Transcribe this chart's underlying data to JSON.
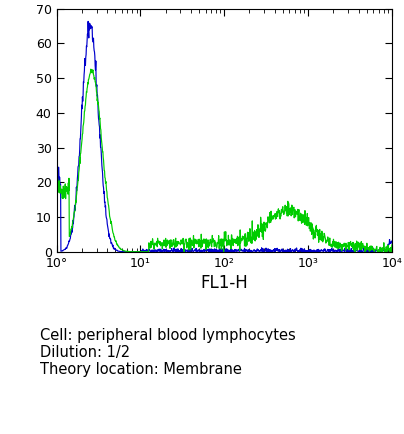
{
  "title": "",
  "xlabel": "FL1-H",
  "ylabel": "",
  "xlim_log": [
    1,
    10000
  ],
  "ylim": [
    0,
    70
  ],
  "yticks": [
    0,
    10,
    20,
    30,
    40,
    50,
    60,
    70
  ],
  "xticks": [
    1,
    10,
    100,
    1000,
    10000
  ],
  "xtick_labels": [
    "10°",
    "10¹",
    "10²",
    "10³",
    "10⁴"
  ],
  "annotation_lines": [
    "Cell: peripheral blood lymphocytes",
    "Dilution: 1/2",
    "Theory location: Membrane"
  ],
  "blue_color": "#0000cc",
  "green_color": "#00cc00",
  "bg_color": "#ffffff",
  "annotation_fontsize": 10.5,
  "xlabel_fontsize": 12,
  "tick_fontsize": 9
}
